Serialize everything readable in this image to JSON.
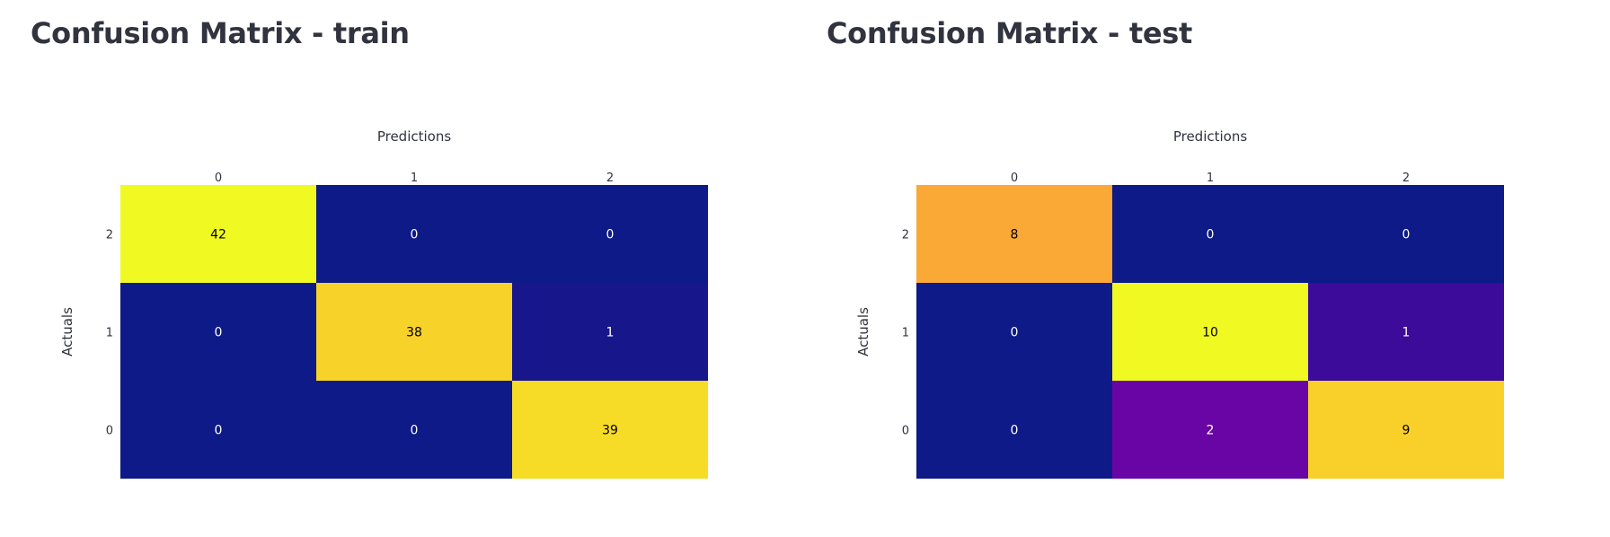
{
  "panels": [
    {
      "title": "Confusion Matrix - train"
    },
    {
      "title": "Confusion Matrix - test"
    }
  ],
  "colorscale": [
    "#0d1a87",
    "#5c01a6",
    "#9c179e",
    "#cc4778",
    "#ed7953",
    "#fdb42f",
    "#f0f921"
  ],
  "text_colors": {
    "dark_bg": "#ffffff",
    "light_bg": "#000000"
  },
  "chart_data": [
    {
      "type": "heatmap",
      "title": "Confusion Matrix - train",
      "xlabel": "Predictions",
      "ylabel": "Actuals",
      "x_categories": [
        "0",
        "1",
        "2"
      ],
      "y_categories_top_to_bottom": [
        "2",
        "1",
        "0"
      ],
      "z": [
        [
          42,
          0,
          0
        ],
        [
          0,
          38,
          1
        ],
        [
          0,
          0,
          39
        ]
      ],
      "zmin": 0,
      "zmax": 42,
      "x_axis_position": "top"
    },
    {
      "type": "heatmap",
      "title": "Confusion Matrix - test",
      "xlabel": "Predictions",
      "ylabel": "Actuals",
      "x_categories": [
        "0",
        "1",
        "2"
      ],
      "y_categories_top_to_bottom": [
        "2",
        "1",
        "0"
      ],
      "z": [
        [
          8,
          0,
          0
        ],
        [
          0,
          10,
          1
        ],
        [
          0,
          2,
          9
        ]
      ],
      "zmin": 0,
      "zmax": 10,
      "x_axis_position": "top"
    }
  ]
}
